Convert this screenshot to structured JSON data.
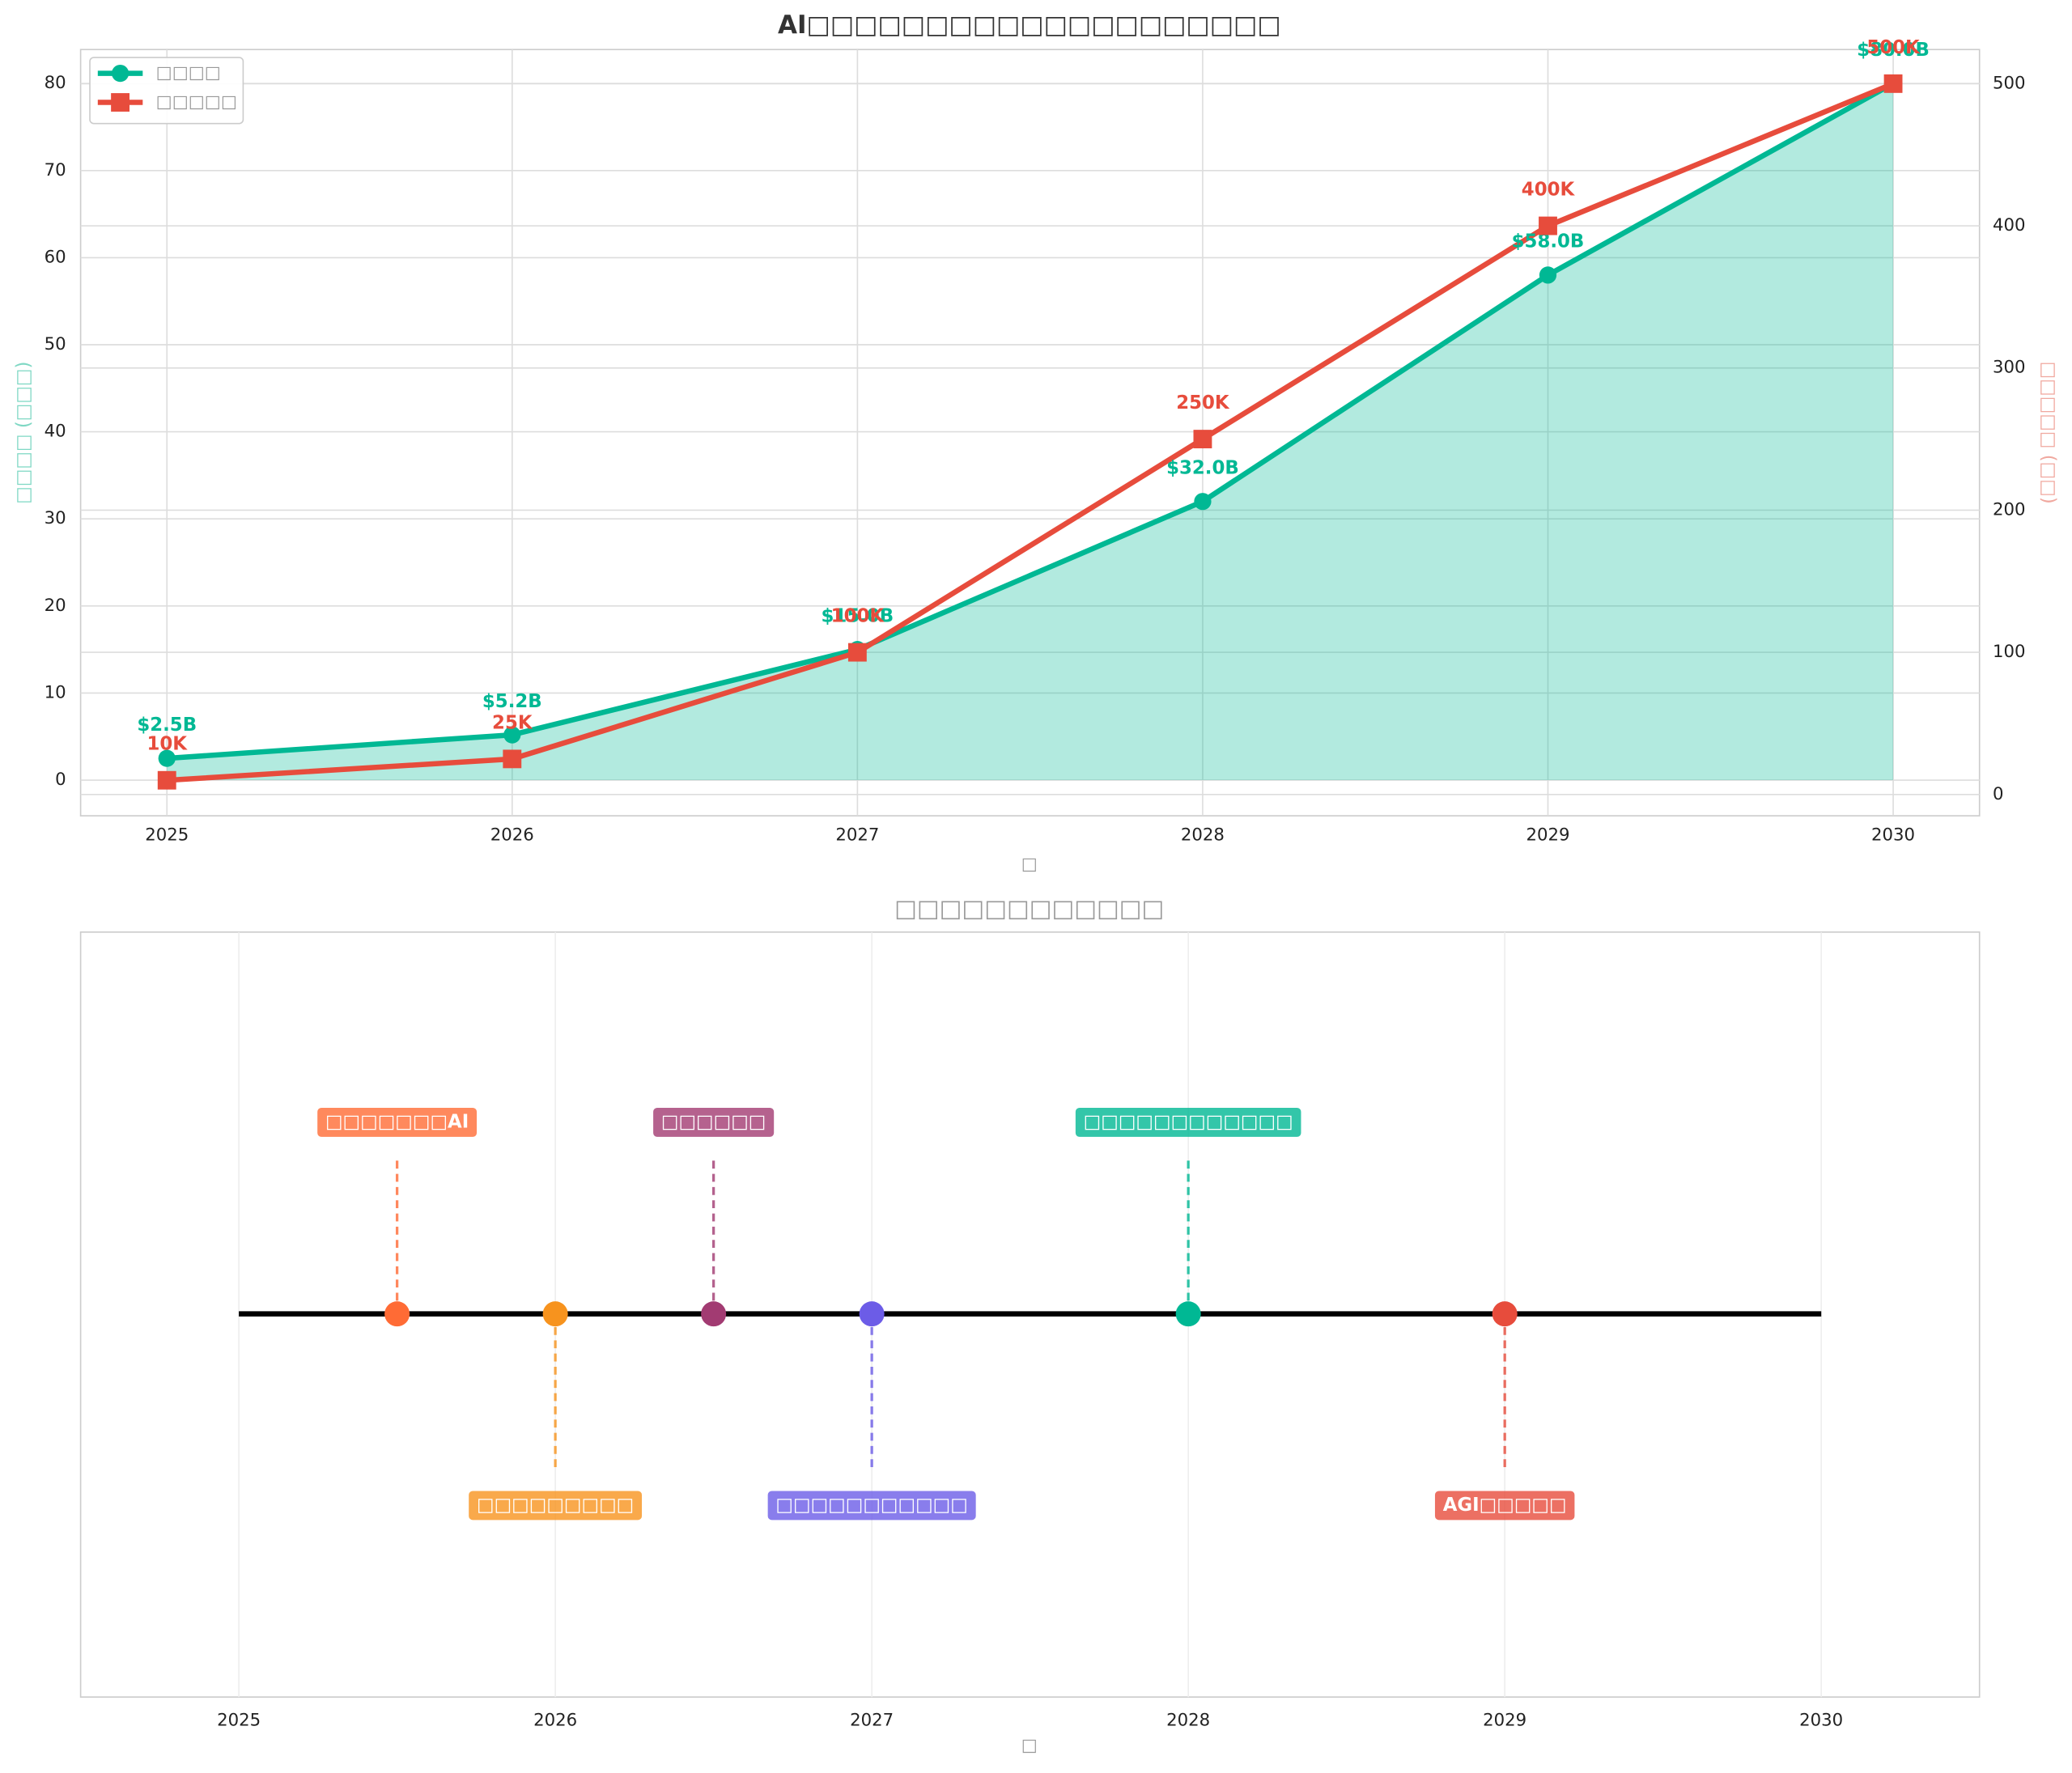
{
  "chart_data": [
    {
      "type": "line",
      "title": "AI□□□□□□□□□□□□□□□□□□□□",
      "xlabel": "□",
      "ylabel": "□□□□ (□□□)",
      "y2label": "□□□□□ (□□)",
      "x": [
        2025,
        2026,
        2027,
        2028,
        2029,
        2030
      ],
      "xlim": [
        2024.75,
        2030.25
      ],
      "xticks": [
        2025,
        2026,
        2027,
        2028,
        2029,
        2030
      ],
      "ylim": [
        -4.1,
        83.9
      ],
      "yticks": [
        0,
        10,
        20,
        30,
        40,
        50,
        60,
        70,
        80
      ],
      "y2lim": [
        -15,
        524
      ],
      "y2ticks": [
        0,
        100,
        200,
        300,
        400,
        500
      ],
      "grid": true,
      "legend": "upper left",
      "series": [
        {
          "name": "□□□□",
          "color": "#00b894",
          "marker": "circle",
          "fill": true,
          "values": [
            2.5,
            5.2,
            15.0,
            32.0,
            58.0,
            80.0
          ],
          "value_labels": [
            "$2.5B",
            "$5.2B",
            "$15.0B",
            "$32.0B",
            "$58.0B",
            "$80.0B"
          ]
        },
        {
          "name": "□□□□□",
          "color": "#e74c3c",
          "marker": "square",
          "axis": "y2",
          "values": [
            10,
            25,
            100,
            250,
            400,
            500
          ],
          "value_labels": [
            "10K",
            "25K",
            "100K",
            "250K",
            "400K",
            "500K"
          ]
        }
      ]
    },
    {
      "type": "timeline",
      "title": "□□□□□□□□□□□□",
      "xlabel": "□",
      "xlim": [
        2024.5,
        2030.5
      ],
      "xticks": [
        2025,
        2026,
        2027,
        2028,
        2029,
        2030
      ],
      "x": [
        2025.5,
        2026,
        2026.5,
        2027,
        2028,
        2029
      ],
      "labels": [
        "□□□□□□□AI",
        "□□□□□□□□□",
        "□□□□□□",
        "□□□□□□□□□□□",
        "□□□□□□□□□□□□",
        "AGI□□□□□"
      ],
      "colors": [
        "#ff6b35",
        "#f7931e",
        "#a23b72",
        "#6c5ce7",
        "#00b894",
        "#e74c3c"
      ],
      "sides": [
        "up",
        "down",
        "up",
        "down",
        "up",
        "down"
      ]
    }
  ]
}
